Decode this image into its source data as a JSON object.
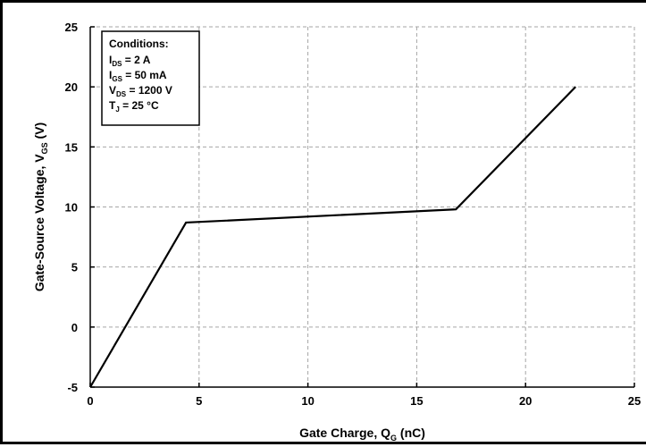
{
  "chart_data": {
    "type": "line",
    "xlabel": {
      "main": "Gate Charge, Q",
      "sub": "G",
      "unit": " (nC)"
    },
    "ylabel": {
      "main": "Gate-Source Voltage, V",
      "sub": "GS",
      "unit": " (V)"
    },
    "xlim": [
      0,
      25
    ],
    "ylim": [
      -5,
      25
    ],
    "xticks": [
      0,
      5,
      10,
      15,
      20,
      25
    ],
    "yticks": [
      -5,
      0,
      5,
      10,
      15,
      20,
      25
    ],
    "grid": true,
    "series": [
      {
        "x": [
          0,
          4.4,
          16.8,
          22.3
        ],
        "y": [
          -5,
          8.7,
          9.8,
          20.0
        ]
      }
    ],
    "annotation": {
      "title": "Conditions:",
      "lines": [
        {
          "main": "I",
          "sub": "DS",
          "rest": " = 2 A"
        },
        {
          "main": "I",
          "sub": "GS",
          "rest": " = 50 mA"
        },
        {
          "main": "V",
          "sub": "DS",
          "rest": " = 1200 V"
        },
        {
          "main": "T",
          "sub": "J",
          "rest": " = 25 °C"
        }
      ]
    }
  }
}
